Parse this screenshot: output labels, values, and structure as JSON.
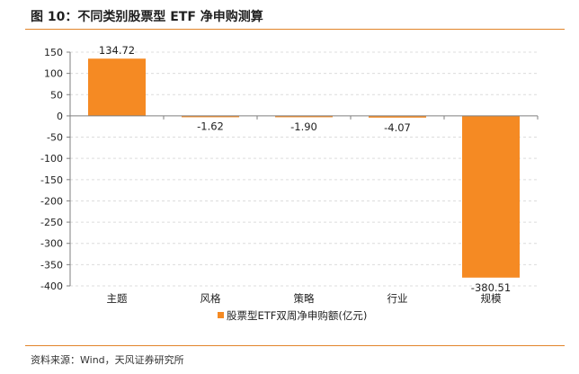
{
  "figure": {
    "title": "图 10：不同类别股票型 ETF 净申购测算",
    "source": "资料来源：Wind，天风证券研究所"
  },
  "chart_data": {
    "type": "bar",
    "categories": [
      "主题",
      "风格",
      "策略",
      "行业",
      "规模"
    ],
    "series": [
      {
        "name": "股票型ETF双周净申购额(亿元)",
        "values": [
          134.72,
          -1.62,
          -1.9,
          -4.07,
          -380.51
        ],
        "labels": [
          "134.72",
          "-1.62",
          "-1.90",
          "-4.07",
          "-380.51"
        ],
        "color": "#f58a23"
      }
    ],
    "ylim": [
      -400,
      150
    ],
    "yticks": [
      150,
      100,
      50,
      0,
      -50,
      -100,
      -150,
      -200,
      -250,
      -300,
      -350,
      -400
    ],
    "grid": true,
    "legend": "bottom",
    "title": "",
    "xlabel": "",
    "ylabel": ""
  }
}
